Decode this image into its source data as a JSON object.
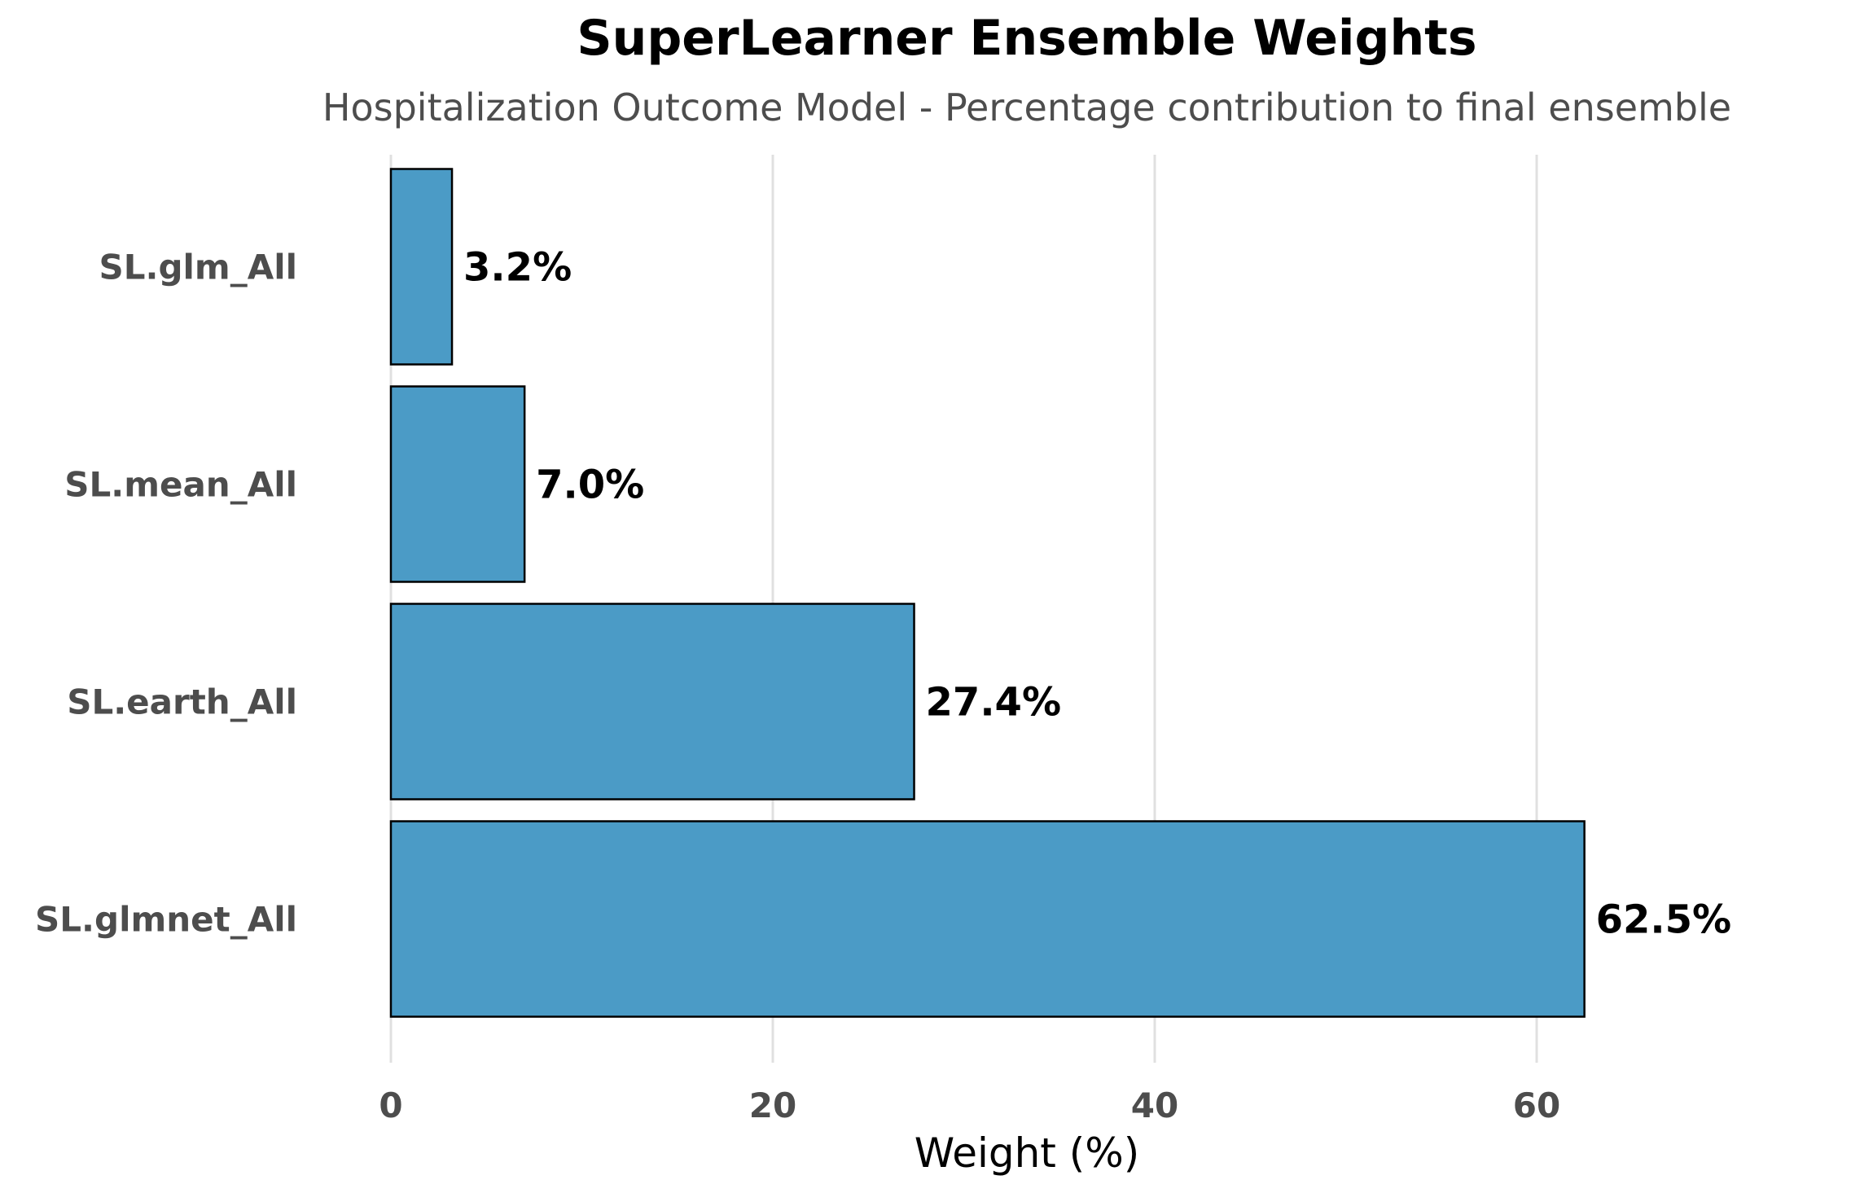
{
  "chart_data": {
    "type": "bar",
    "orientation": "horizontal",
    "title": "SuperLearner Ensemble Weights",
    "subtitle": "Hospitalization Outcome Model - Percentage contribution to final ensemble",
    "xlabel": "Weight (%)",
    "ylabel": "",
    "categories": [
      "SL.glm_All",
      "SL.mean_All",
      "SL.earth_All",
      "SL.glmnet_All"
    ],
    "values": [
      3.2,
      7.0,
      27.4,
      62.5
    ],
    "data_labels": [
      "3.2%",
      "7.0%",
      "27.4%",
      "62.5%"
    ],
    "xticks": [
      0,
      20,
      40,
      60
    ],
    "xtick_labels": [
      "0",
      "20",
      "40",
      "60"
    ],
    "xlim": [
      0,
      70
    ],
    "grid": "vertical major gridlines",
    "legend": "none",
    "bar_color": "#4b9bc6",
    "bar_edge_color": "#000000"
  }
}
